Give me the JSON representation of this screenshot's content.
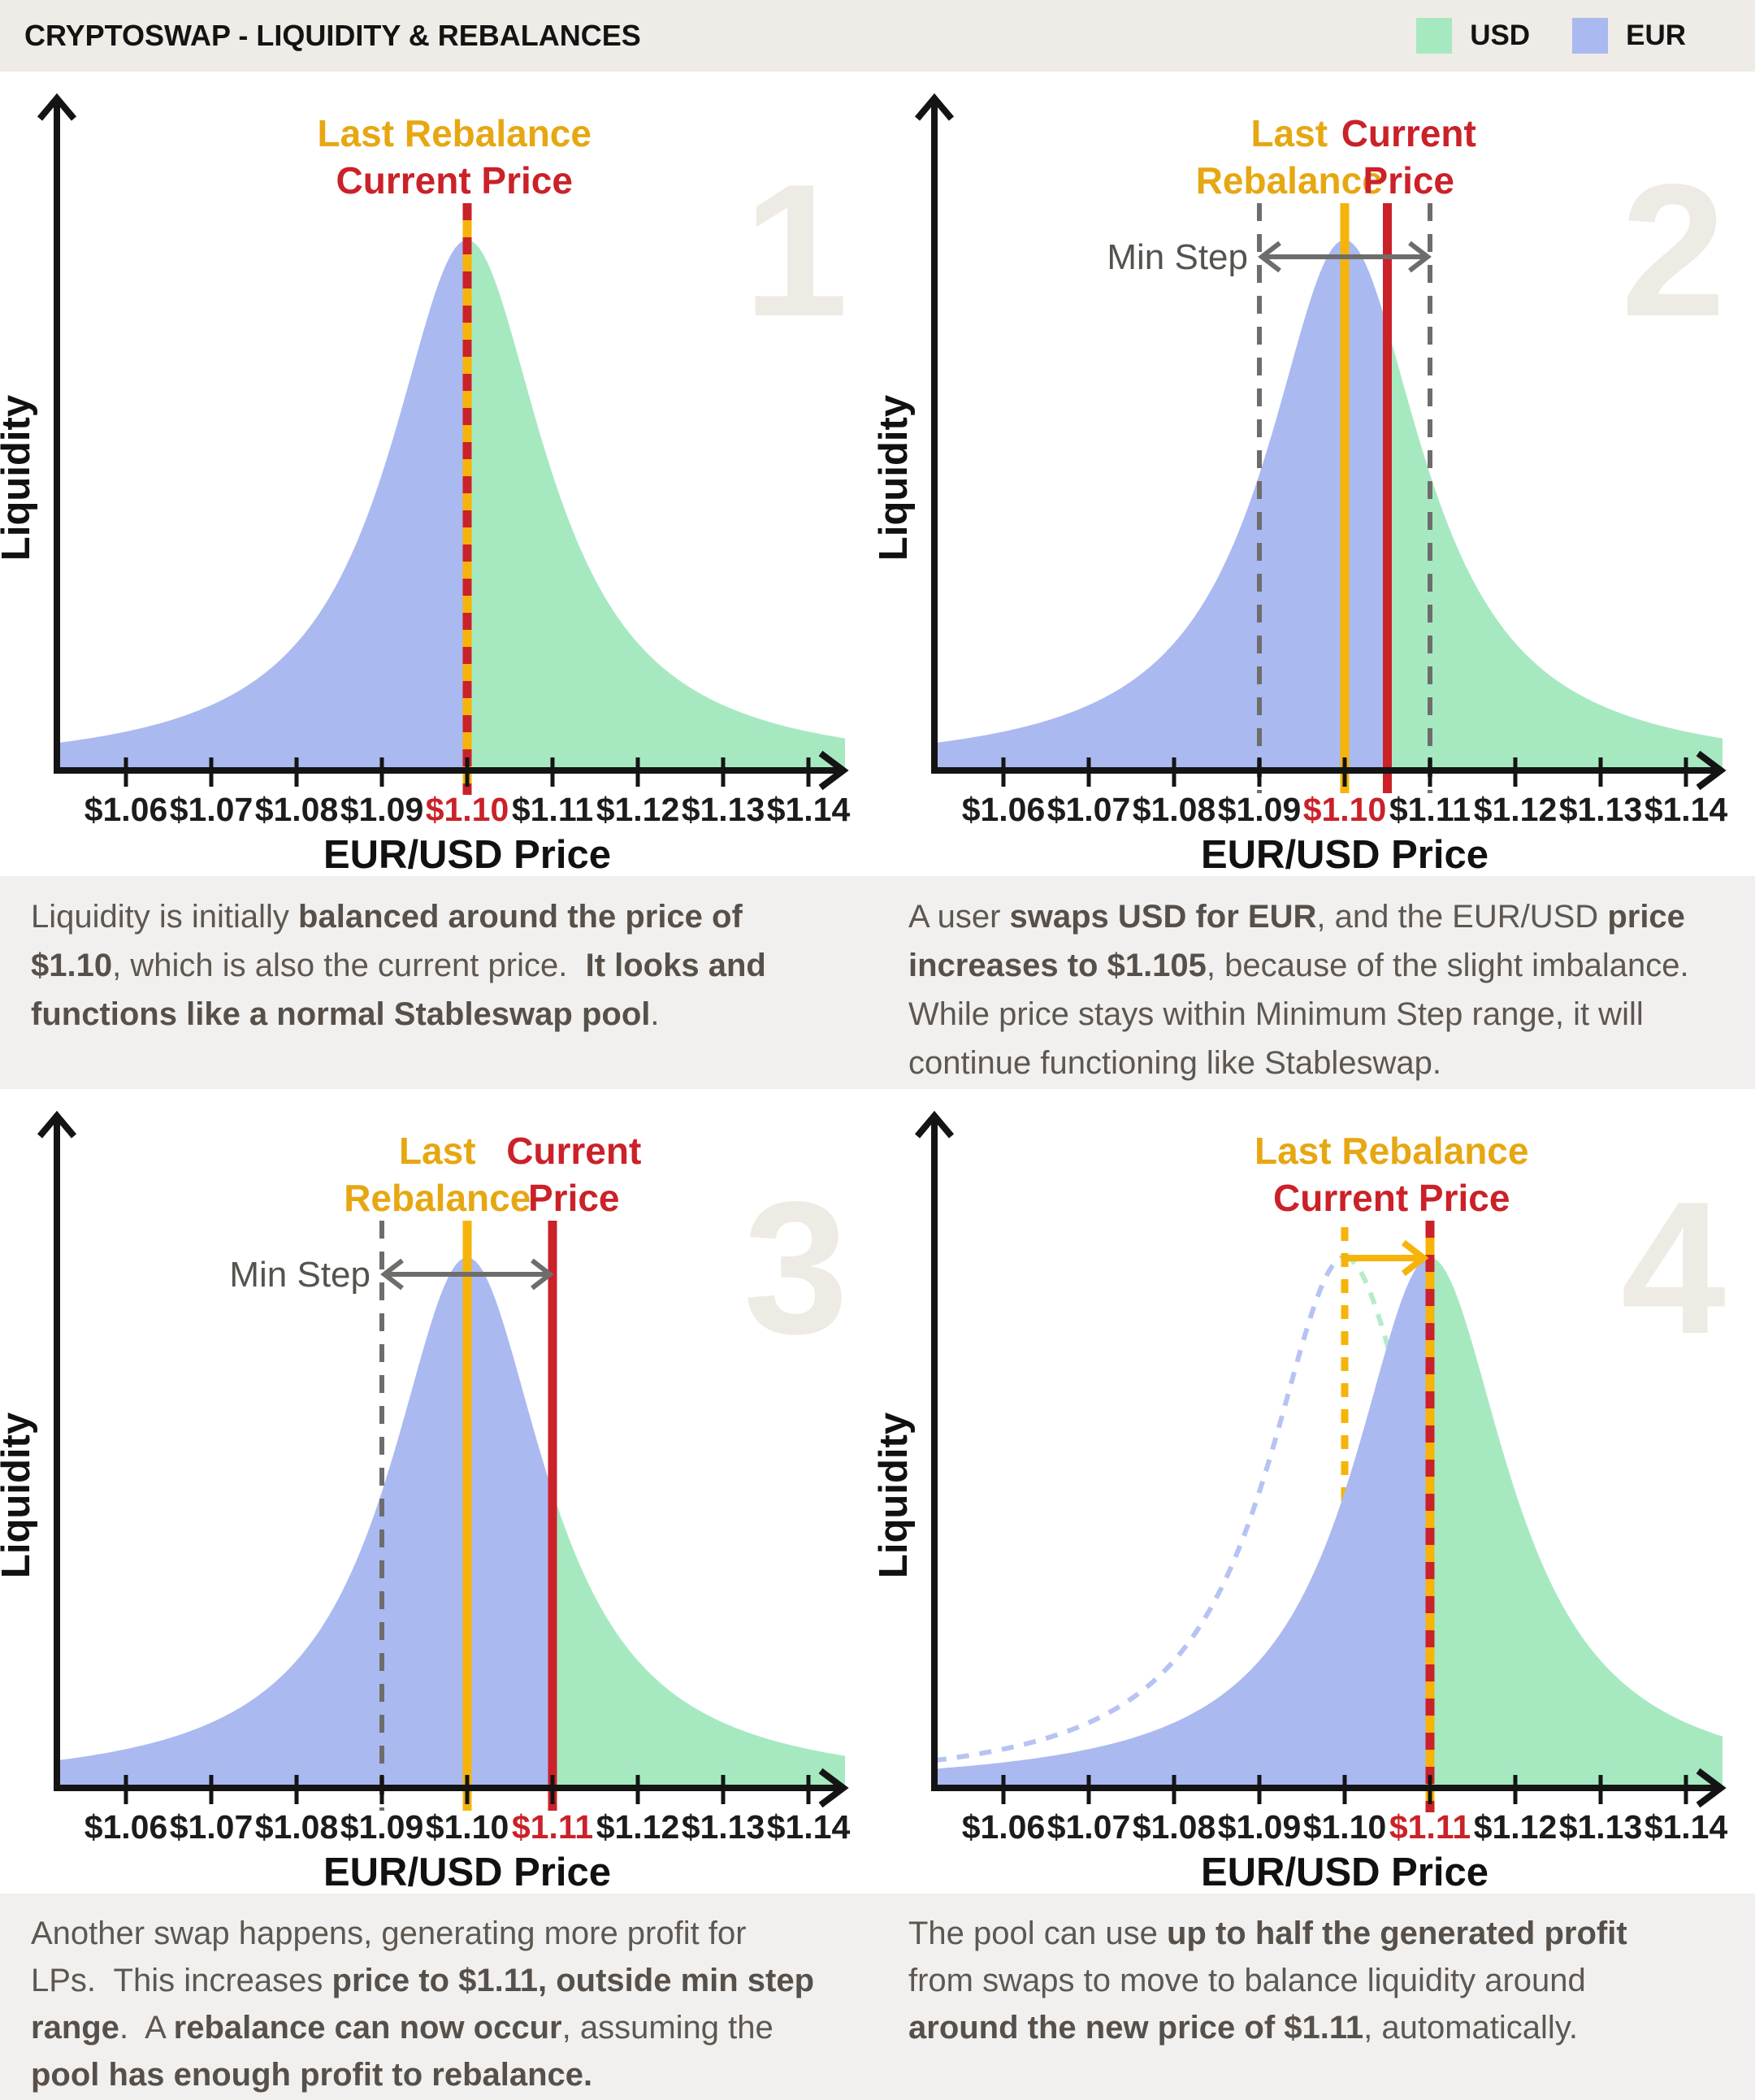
{
  "header": {
    "title": "CRYPTOSWAP - LIQUIDITY & REBALANCES",
    "legend": [
      {
        "label": "USD",
        "swatch": "usd"
      },
      {
        "label": "EUR",
        "swatch": "eur"
      }
    ]
  },
  "colors": {
    "usd": "#a6e9c1",
    "eur": "#aab9f0",
    "usd_ghost": "#b4ecc9",
    "eur_ghost": "#b7c3f3",
    "gold_text": "#e6a712",
    "gold_line": "#f6b40a",
    "red": "#cb2129",
    "gray_dash": "#6e6d6b",
    "minstep_text": "#55534e",
    "axis": "#141414",
    "tick_text": "#1c1c1c",
    "panel_number": "#eeeae4",
    "caption_bg": "#f2f0ee",
    "header_bg": "#efebe6"
  },
  "axis": {
    "x_label": "EUR/USD Price",
    "y_label": "Liquidity",
    "ticks": [
      "$1.06",
      "$1.07",
      "$1.08",
      "$1.09",
      "$1.10",
      "$1.11",
      "$1.12",
      "$1.13",
      "$1.14"
    ],
    "tick_start_price": 1.06,
    "tick_step": 0.01
  },
  "panels": [
    {
      "number": "1",
      "curve_center": 1.1,
      "split": 1.1,
      "highlight_tick": "$1.10",
      "top_labels": [
        {
          "text": "Last Rebalance",
          "color": "gold",
          "x": 1.0985,
          "row": 1
        },
        {
          "text": "Current Price",
          "color": "red",
          "x": 1.0985,
          "row": 2
        }
      ],
      "vlines": [
        {
          "style": "gold-red-dashed",
          "price": 1.1
        }
      ]
    },
    {
      "number": "2",
      "curve_center": 1.1,
      "split": 1.105,
      "highlight_tick": "$1.10",
      "top_labels": [
        {
          "text": "Last",
          "color": "gold",
          "x": 1.0935,
          "row": 1
        },
        {
          "text": "Rebalance",
          "color": "gold",
          "x": 1.0935,
          "row": 2
        },
        {
          "text": "Current",
          "color": "red",
          "x": 1.1075,
          "row": 1
        },
        {
          "text": "Price",
          "color": "red",
          "x": 1.1075,
          "row": 2
        }
      ],
      "vlines": [
        {
          "style": "gray-dashed",
          "price": 1.09
        },
        {
          "style": "gray-dashed",
          "price": 1.11
        },
        {
          "style": "gold-solid",
          "price": 1.1
        },
        {
          "style": "red-solid",
          "price": 1.105
        }
      ],
      "min_step": {
        "label": "Min Step",
        "from": 1.09,
        "to": 1.11
      }
    },
    {
      "number": "3",
      "curve_center": 1.1,
      "split": 1.11,
      "highlight_tick": "$1.11",
      "top_labels": [
        {
          "text": "Last",
          "color": "gold",
          "x": 1.0965,
          "row": 1
        },
        {
          "text": "Rebalance",
          "color": "gold",
          "x": 1.0965,
          "row": 2
        },
        {
          "text": "Current",
          "color": "red",
          "x": 1.1125,
          "row": 1
        },
        {
          "text": "Price",
          "color": "red",
          "x": 1.1125,
          "row": 2
        }
      ],
      "vlines": [
        {
          "style": "gray-dashed",
          "price": 1.09
        },
        {
          "style": "gray-dashed",
          "price": 1.11
        },
        {
          "style": "gold-solid",
          "price": 1.1
        },
        {
          "style": "red-solid",
          "price": 1.11
        }
      ],
      "min_step": {
        "label": "Min Step",
        "from": 1.09,
        "to": 1.11
      }
    },
    {
      "number": "4",
      "curve_center": 1.11,
      "split": 1.11,
      "highlight_tick": "$1.11",
      "ghost_curve": {
        "center": 1.1
      },
      "top_labels": [
        {
          "text": "Last Rebalance",
          "color": "gold",
          "x": 1.1055,
          "row": 1
        },
        {
          "text": "Current Price",
          "color": "red",
          "x": 1.1055,
          "row": 2
        }
      ],
      "vlines": [
        {
          "style": "gold-dashed-behind",
          "price": 1.1
        },
        {
          "style": "gold-red-dashed",
          "price": 1.11
        }
      ],
      "shift_arrow": {
        "from": 1.1,
        "to": 1.11
      }
    }
  ],
  "captions": [
    [
      {
        "t": "Liquidity is initially ",
        "b": false
      },
      {
        "t": "balanced around the price of $1.10",
        "b": true
      },
      {
        "t": ", which is also the current price.  ",
        "b": false
      },
      {
        "t": "It looks and functions like a normal Stableswap pool",
        "b": true
      },
      {
        "t": ".",
        "b": false
      }
    ],
    [
      {
        "t": "A user ",
        "b": false
      },
      {
        "t": "swaps USD for EUR",
        "b": true
      },
      {
        "t": ", and the EUR/USD ",
        "b": false
      },
      {
        "t": "price increases to $1.105",
        "b": true
      },
      {
        "t": ", because of the slight imbalance. While price stays within Minimum Step range, it will continue functioning like Stableswap.",
        "b": false
      }
    ],
    [
      {
        "t": "Another swap happens, generating more profit for LPs.  This increases ",
        "b": false
      },
      {
        "t": "price to $1.11, outside min step range",
        "b": true
      },
      {
        "t": ".  A ",
        "b": false
      },
      {
        "t": "rebalance can now occur",
        "b": true
      },
      {
        "t": ", assuming the ",
        "b": false
      },
      {
        "t": "pool has enough profit to rebalance.",
        "b": true
      }
    ],
    [
      {
        "t": "The pool can use ",
        "b": false
      },
      {
        "t": "up to half the generated profit",
        "b": true
      },
      {
        "t": " from swaps to move to balance liquidity around ",
        "b": false
      },
      {
        "t": "around the new price of $1.11",
        "b": true
      },
      {
        "t": ", automatically.",
        "b": false
      }
    ]
  ]
}
